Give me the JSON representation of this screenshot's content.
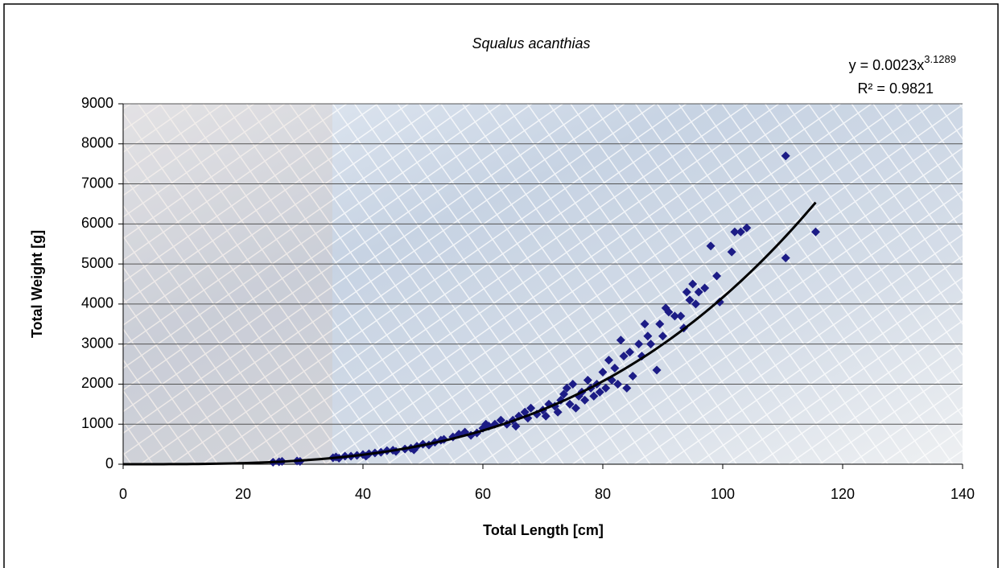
{
  "chart_data": {
    "type": "scatter",
    "title": "Squalus acanthias",
    "x_label": "Total Length [cm]",
    "y_label": "Total Weight [g]",
    "xlim": [
      0,
      140
    ],
    "xticks": [
      0,
      20,
      40,
      60,
      80,
      100,
      120,
      140
    ],
    "ylim": [
      0,
      9000
    ],
    "yticks": [
      0,
      1000,
      2000,
      3000,
      4000,
      5000,
      6000,
      7000,
      8000,
      9000
    ],
    "grid": true,
    "series": [
      {
        "color": "#1c1c86",
        "x": [
          25,
          26,
          26.5,
          29,
          29.5,
          35,
          35.5,
          36,
          37,
          38,
          39,
          40,
          40.5,
          41,
          42,
          43,
          44,
          45,
          45.5,
          47,
          48,
          48.5,
          49,
          50,
          51,
          52,
          53,
          53.5,
          55,
          56,
          57,
          58,
          59,
          60,
          60.5,
          61,
          62,
          63,
          64,
          65,
          65.5,
          66,
          67,
          67.5,
          68,
          69,
          70,
          70.5,
          71,
          72,
          72.5,
          73,
          73.5,
          74,
          74.5,
          75,
          75.5,
          76,
          76.5,
          77,
          77.5,
          78,
          78.5,
          79,
          79.5,
          80,
          80.5,
          81,
          81.5,
          82,
          82.5,
          83,
          83.5,
          84,
          84.5,
          85,
          86,
          86.5,
          87,
          87.5,
          88,
          89,
          89.5,
          90,
          90.5,
          91,
          92,
          93,
          93.5,
          94,
          94.5,
          95,
          95.5,
          96,
          97,
          98,
          99,
          99.5,
          101.5,
          102,
          103,
          104,
          110.5,
          110.5,
          115.5
        ],
        "values": [
          50,
          60,
          70,
          80,
          70,
          160,
          180,
          150,
          200,
          200,
          220,
          240,
          200,
          260,
          280,
          300,
          340,
          350,
          320,
          380,
          400,
          360,
          450,
          500,
          480,
          550,
          600,
          620,
          680,
          750,
          800,
          720,
          780,
          900,
          1000,
          950,
          1000,
          1100,
          1000,
          1100,
          950,
          1200,
          1300,
          1150,
          1400,
          1250,
          1350,
          1200,
          1500,
          1450,
          1300,
          1600,
          1750,
          1900,
          1500,
          2000,
          1400,
          1700,
          1800,
          1600,
          2100,
          1900,
          1700,
          2000,
          1800,
          2300,
          1900,
          2600,
          2100,
          2400,
          2000,
          3100,
          2700,
          1900,
          2800,
          2200,
          3000,
          2700,
          3500,
          3200,
          3000,
          2350,
          3500,
          3200,
          3900,
          3800,
          3700,
          3700,
          3400,
          4300,
          4100,
          4500,
          4000,
          4300,
          4400,
          5450,
          4700,
          4050,
          5300,
          5800,
          5800,
          5900,
          7700,
          5150,
          5800
        ]
      }
    ],
    "trendline": {
      "equation": "y = 0.0023x",
      "equation_exponent": "3.1289",
      "r_squared": "R² = 0.9821",
      "coefficient": 0.0023,
      "exponent": 3.1289,
      "x_range": [
        0,
        115.5
      ],
      "color": "#000000"
    }
  }
}
